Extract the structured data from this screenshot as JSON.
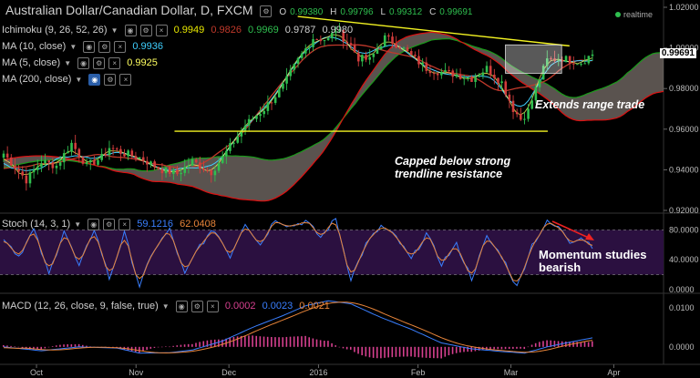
{
  "header": {
    "title": "Australian Dollar/Canadian Dollar, D, FXCM",
    "ohlc": {
      "o_label": "O",
      "o": "0.99380",
      "h_label": "H",
      "h": "0.99796",
      "l_label": "L",
      "l": "0.99312",
      "c_label": "C",
      "c": "0.99691"
    },
    "realtime": "realtime"
  },
  "indicators": {
    "ichimoku": {
      "label": "Ichimoku (9, 26, 52, 26)",
      "values": [
        "0.9949",
        "0.9826",
        "0.9969",
        "0.9787",
        "0.9980"
      ],
      "colors": [
        "#e8e800",
        "#c0392b",
        "#d0d0d0",
        "#2fbf4f",
        "#d0d0d0"
      ]
    },
    "ma10": {
      "label": "MA (10, close)",
      "value": "0.9936",
      "color": "#3fd0ff"
    },
    "ma5": {
      "label": "MA (5, close)",
      "value": "0.9925",
      "color": "#ffff60"
    },
    "ma200": {
      "label": "MA (200, close)"
    }
  },
  "stoch": {
    "label": "Stoch (14, 3, 1)",
    "k": "59.1216",
    "d": "62.0408"
  },
  "macd": {
    "label": "MACD (12, 26, close, 9, false, true)",
    "hist": "0.0002",
    "macd": "0.0023",
    "signal": "0.0021"
  },
  "current_price": "0.99691",
  "annotations": {
    "range": "Extends range trade",
    "trend_1": "Capped below strong",
    "trend_2": "trendline resistance",
    "mom_1": "Momentum studies",
    "mom_2": "bearish"
  },
  "colors": {
    "up": "#2fbf4f",
    "down": "#d23c3c",
    "cloud": "#8a7f7a",
    "kumo_red": "#d11",
    "kumo_green": "#1a9a1a",
    "kijun": "#c0392b",
    "tenkan": "#e8e800",
    "ma10": "#3fd0ff",
    "ma5": "#ffff60",
    "trendline": "#f4f422",
    "stoch_k": "#3a7fff",
    "stoch_d": "#e8853a",
    "stoch_bg": "#2b1040",
    "macd_line": "#3a7fff",
    "signal_line": "#e8853a",
    "hist": "#d6408f"
  },
  "chart_data": [
    {
      "type": "candlestick",
      "title": "Australian Dollar/Canadian Dollar, D, FXCM",
      "x_ticks": [
        "Oct",
        "Nov",
        "Dec",
        "2016",
        "Feb",
        "Mar",
        "Apr"
      ],
      "y_ticks": [
        "0.92000",
        "0.94000",
        "0.96000",
        "0.98000",
        "1.00000",
        "1.02000"
      ],
      "ylim": [
        0.92,
        1.02
      ],
      "close_anchor_points": [
        [
          0,
          0.948
        ],
        [
          6,
          0.935
        ],
        [
          10,
          0.944
        ],
        [
          14,
          0.942
        ],
        [
          18,
          0.953
        ],
        [
          22,
          0.942
        ],
        [
          26,
          0.946
        ],
        [
          28,
          0.951
        ],
        [
          32,
          0.948
        ],
        [
          36,
          0.946
        ],
        [
          42,
          0.94
        ],
        [
          46,
          0.938
        ],
        [
          50,
          0.944
        ],
        [
          55,
          0.939
        ],
        [
          58,
          0.946
        ],
        [
          64,
          0.962
        ],
        [
          69,
          0.97
        ],
        [
          74,
          0.981
        ],
        [
          78,
          0.994
        ],
        [
          82,
          1.005
        ],
        [
          86,
          1.004
        ],
        [
          88,
          1.009
        ],
        [
          92,
          1.001
        ],
        [
          94,
          0.995
        ],
        [
          97,
          0.994
        ],
        [
          101,
          1.005
        ],
        [
          105,
          1.001
        ],
        [
          108,
          0.996
        ],
        [
          112,
          0.99
        ],
        [
          116,
          0.988
        ],
        [
          120,
          0.987
        ],
        [
          124,
          0.985
        ],
        [
          128,
          0.99
        ],
        [
          132,
          0.983
        ],
        [
          135,
          0.97
        ],
        [
          137,
          0.965
        ],
        [
          139,
          0.969
        ],
        [
          142,
          0.985
        ],
        [
          144,
          0.994
        ],
        [
          148,
          0.995
        ],
        [
          150,
          0.994
        ],
        [
          153,
          0.993
        ],
        [
          156,
          0.997
        ]
      ],
      "trendlines": [
        {
          "name": "resistance",
          "points": [
            [
              0.4487,
              1.0155
            ],
            [
              0.8583,
              1.001
            ]
          ]
        },
        {
          "name": "support",
          "points": [
            [
              0.263,
              0.959
            ],
            [
              0.8255,
              0.959
            ]
          ]
        }
      ],
      "range_box": {
        "x": [
          0.7617,
          0.8464
        ],
        "y": [
          0.9875,
          1.0015
        ]
      }
    },
    {
      "type": "line",
      "title": "Stoch (14, 3, 1)",
      "y_ticks": [
        "0.0000",
        "40.0000",
        "80.0000"
      ],
      "ylim": [
        0,
        100
      ],
      "series": [
        {
          "name": "%K",
          "last": 59.1216
        },
        {
          "name": "%D",
          "last": 62.0408
        }
      ],
      "k_anchor_points": [
        [
          0,
          70
        ],
        [
          4,
          45
        ],
        [
          8,
          80
        ],
        [
          12,
          20
        ],
        [
          16,
          80
        ],
        [
          20,
          30
        ],
        [
          24,
          82
        ],
        [
          28,
          15
        ],
        [
          32,
          75
        ],
        [
          36,
          5
        ],
        [
          40,
          55
        ],
        [
          44,
          80
        ],
        [
          48,
          20
        ],
        [
          52,
          60
        ],
        [
          56,
          80
        ],
        [
          60,
          45
        ],
        [
          64,
          90
        ],
        [
          68,
          60
        ],
        [
          72,
          95
        ],
        [
          76,
          85
        ],
        [
          80,
          92
        ],
        [
          84,
          70
        ],
        [
          88,
          95
        ],
        [
          92,
          15
        ],
        [
          96,
          60
        ],
        [
          100,
          85
        ],
        [
          104,
          70
        ],
        [
          108,
          40
        ],
        [
          112,
          75
        ],
        [
          116,
          35
        ],
        [
          120,
          60
        ],
        [
          124,
          15
        ],
        [
          128,
          70
        ],
        [
          132,
          45
        ],
        [
          136,
          3
        ],
        [
          140,
          60
        ],
        [
          144,
          90
        ],
        [
          148,
          80
        ],
        [
          150,
          65
        ],
        [
          153,
          70
        ],
        [
          156,
          59
        ]
      ]
    },
    {
      "type": "line",
      "title": "MACD (12, 26, close, 9, false, true)",
      "y_ticks": [
        "0.0000",
        "0.0100"
      ],
      "ylim": [
        -0.004,
        0.013
      ],
      "series": [
        {
          "name": "MACD",
          "last": 0.0023
        },
        {
          "name": "Signal",
          "last": 0.0021
        },
        {
          "name": "Histogram",
          "last": 0.0002
        }
      ],
      "macd_anchor_points": [
        [
          0,
          0.0
        ],
        [
          10,
          -0.001
        ],
        [
          20,
          0.0
        ],
        [
          30,
          -0.0003
        ],
        [
          36,
          -0.0016
        ],
        [
          44,
          -0.0015
        ],
        [
          50,
          -0.0008
        ],
        [
          58,
          0.0015
        ],
        [
          66,
          0.005
        ],
        [
          74,
          0.008
        ],
        [
          80,
          0.0105
        ],
        [
          86,
          0.0118
        ],
        [
          92,
          0.011
        ],
        [
          100,
          0.0075
        ],
        [
          108,
          0.0045
        ],
        [
          116,
          0.001
        ],
        [
          124,
          -0.0005
        ],
        [
          132,
          -0.0012
        ],
        [
          138,
          -0.0016
        ],
        [
          144,
          0.0
        ],
        [
          150,
          0.0012
        ],
        [
          156,
          0.0023
        ]
      ]
    }
  ]
}
